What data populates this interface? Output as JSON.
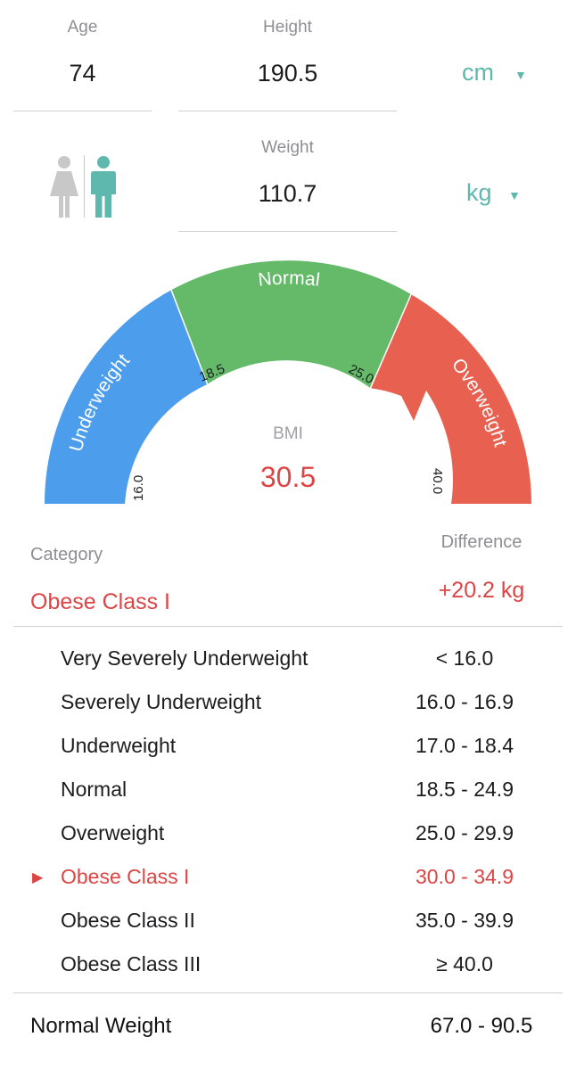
{
  "age": {
    "label": "Age",
    "value": "74"
  },
  "height": {
    "label": "Height",
    "value": "190.5",
    "unit": "cm"
  },
  "weight": {
    "label": "Weight",
    "value": "110.7",
    "unit": "kg"
  },
  "gender": {
    "selected": "male"
  },
  "gauge": {
    "center_label": "BMI",
    "bmi": "30.5",
    "segments": [
      {
        "label": "Underweight",
        "color": "#4d9ded"
      },
      {
        "label": "Normal",
        "color": "#65ba6a"
      },
      {
        "label": "Overweight",
        "color": "#e8604f"
      }
    ],
    "ticks": [
      "16.0",
      "18.5",
      "25.0",
      "40.0"
    ],
    "pointer_value": 30.5
  },
  "result": {
    "category_label": "Category",
    "category_value": "Obese Class I",
    "difference_label": "Difference",
    "difference_value": "+20.2 kg"
  },
  "table": [
    {
      "name": "Very Severely Underweight",
      "range": "< 16.0",
      "active": false
    },
    {
      "name": "Severely Underweight",
      "range": "16.0 - 16.9",
      "active": false
    },
    {
      "name": "Underweight",
      "range": "17.0 - 18.4",
      "active": false
    },
    {
      "name": "Normal",
      "range": "18.5 - 24.9",
      "active": false
    },
    {
      "name": "Overweight",
      "range": "25.0 - 29.9",
      "active": false
    },
    {
      "name": "Obese Class I",
      "range": "30.0 - 34.9",
      "active": true
    },
    {
      "name": "Obese Class II",
      "range": "35.0 - 39.9",
      "active": false
    },
    {
      "name": "Obese Class III",
      "range": "≥ 40.0",
      "active": false
    }
  ],
  "normal_weight": {
    "label": "Normal Weight",
    "value": "67.0 - 90.5"
  },
  "colors": {
    "accent": "#5fb8ad",
    "alert": "#dd4545",
    "muted": "#8e8e93"
  }
}
